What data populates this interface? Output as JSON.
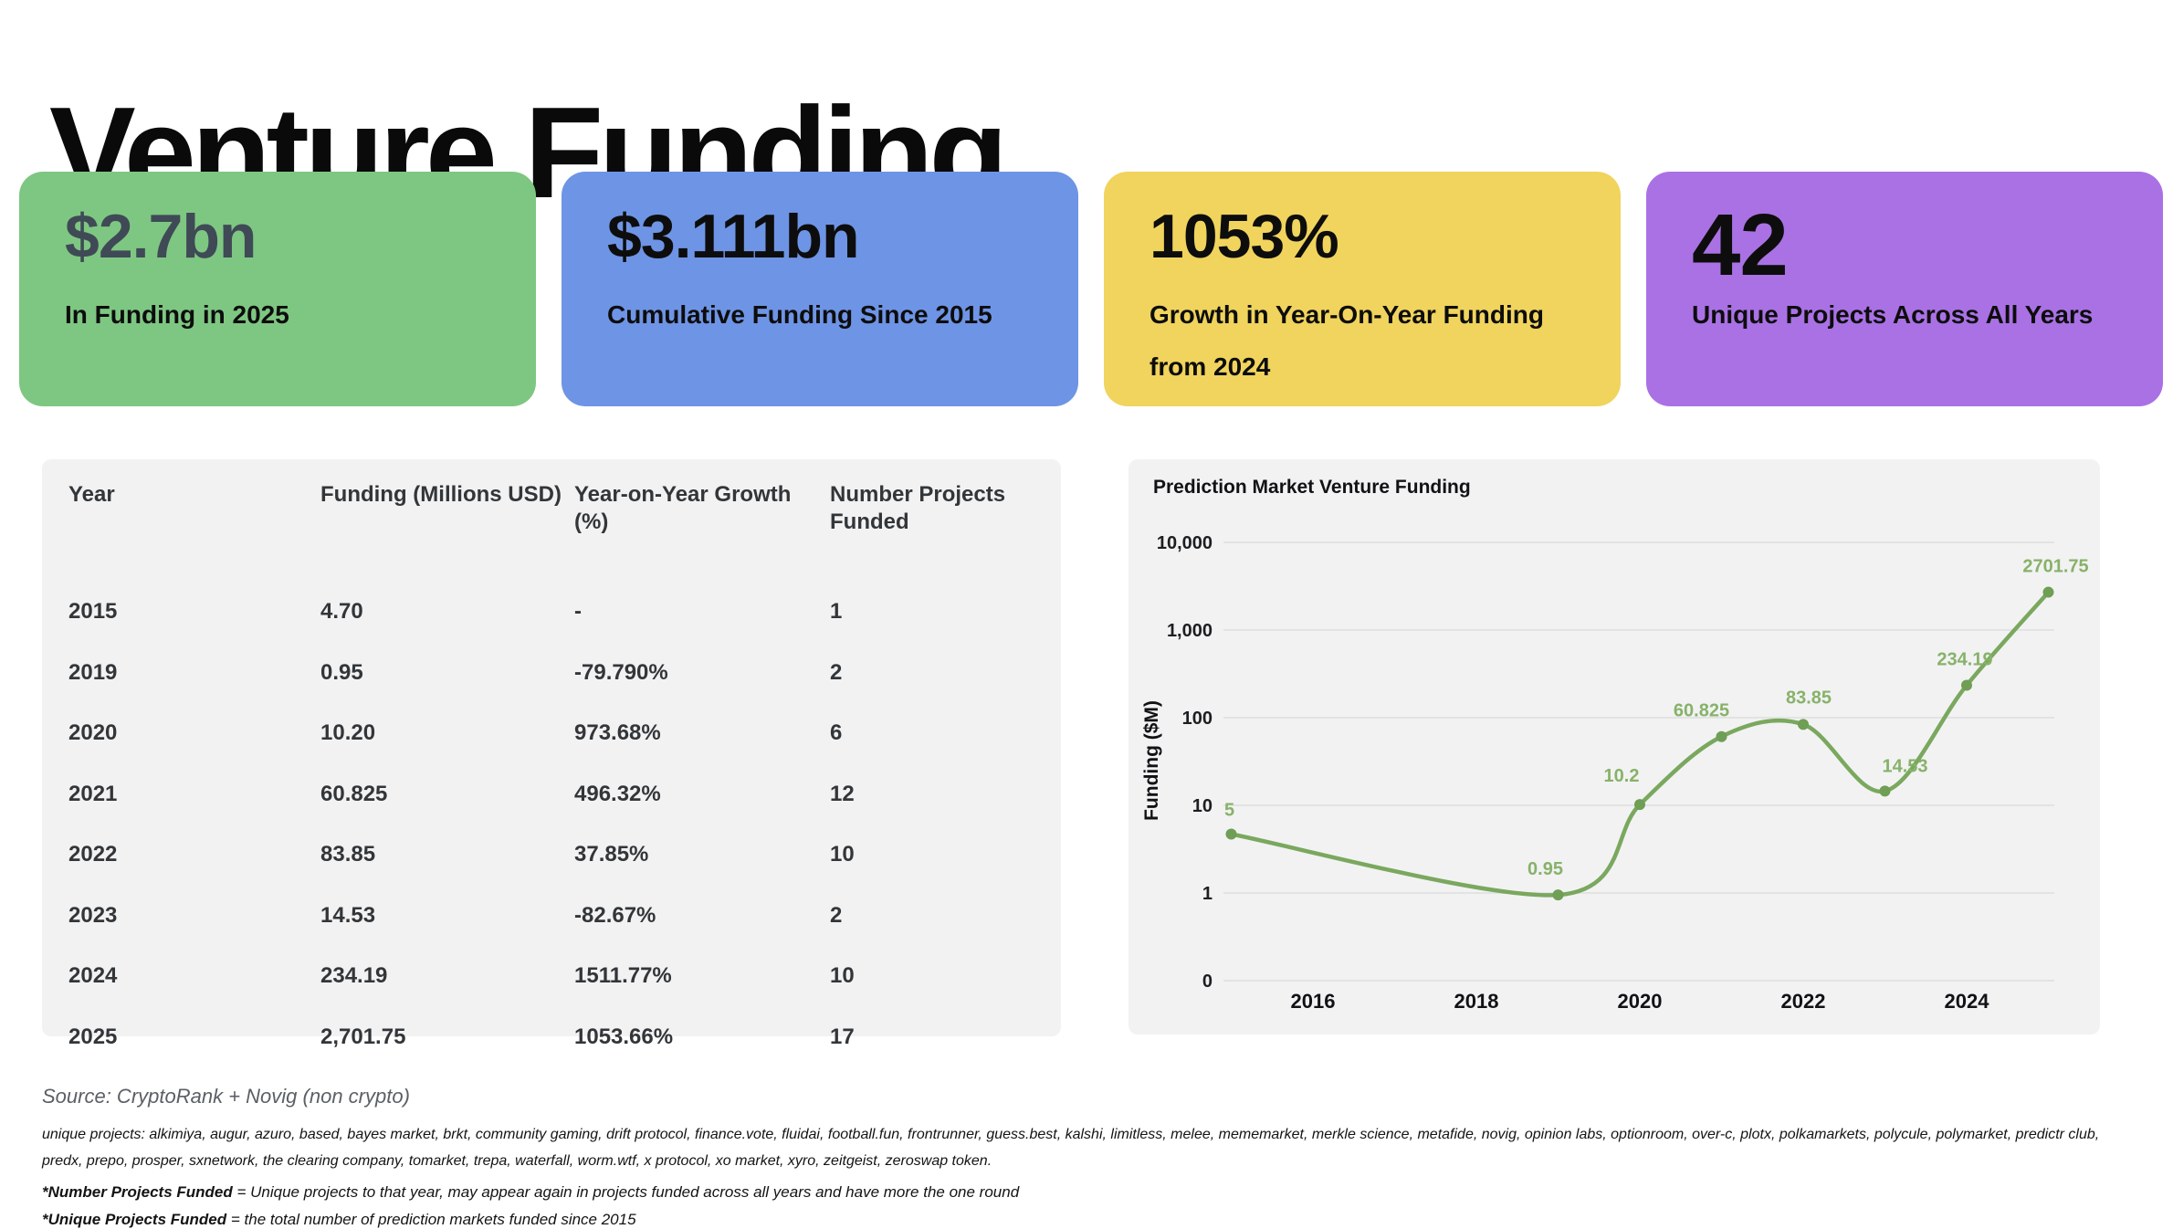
{
  "page": {
    "title": "Venture Funding"
  },
  "kpi_cards": [
    {
      "value": "$2.7bn",
      "label": "In Funding in 2025",
      "bg": "#7ec782",
      "value_color": "#3f4a56"
    },
    {
      "value": "$3.111bn",
      "label": "Cumulative Funding Since 2015",
      "bg": "#6e94e5",
      "value_color": "#0d0d0d"
    },
    {
      "value": "1053%",
      "label": "Growth in Year-On-Year Funding from 2024",
      "bg": "#f0d45d",
      "value_color": "#0d0d0d"
    },
    {
      "value": "42",
      "label": "Unique Projects Across All Years",
      "bg": "#aa71e5",
      "value_color": "#0d0d0d"
    }
  ],
  "table": {
    "columns": [
      "Year",
      "Funding (Millions USD)",
      "Year-on-Year Growth (%)",
      "Number Projects Funded"
    ],
    "rows": [
      [
        "2015",
        "4.70",
        "-",
        "1"
      ],
      [
        "2019",
        "0.95",
        "-79.790%",
        "2"
      ],
      [
        "2020",
        "10.20",
        "973.68%",
        "6"
      ],
      [
        "2021",
        "60.825",
        "496.32%",
        "12"
      ],
      [
        "2022",
        "83.85",
        "37.85%",
        "10"
      ],
      [
        "2023",
        "14.53",
        "-82.67%",
        "2"
      ],
      [
        "2024",
        "234.19",
        "1511.77%",
        "10"
      ],
      [
        "2025",
        "2,701.75",
        "1053.66%",
        "17"
      ]
    ]
  },
  "chart_data": {
    "type": "line",
    "title": "Prediction Market Venture Funding",
    "xlabel": "",
    "ylabel": "Funding ($M)",
    "y_scale": "log",
    "grid": true,
    "x_range": [
      2015,
      2025
    ],
    "x": [
      2015,
      2019,
      2020,
      2021,
      2022,
      2023,
      2024,
      2025
    ],
    "values": [
      4.7,
      0.95,
      10.2,
      60.825,
      83.85,
      14.53,
      234.19,
      2701.75
    ],
    "point_labels": [
      "5",
      "0.95",
      "10.2",
      "60.825",
      "83.85",
      "14.53",
      "234.19",
      "2701.75"
    ],
    "x_ticks": [
      2016,
      2018,
      2020,
      2022,
      2024
    ],
    "y_ticks": [
      {
        "label": "10,000",
        "value": 10000
      },
      {
        "label": "1,000",
        "value": 1000
      },
      {
        "label": "100",
        "value": 100
      },
      {
        "label": "10",
        "value": 10
      },
      {
        "label": "1",
        "value": 1
      },
      {
        "label": "0",
        "value": 0
      }
    ],
    "line_color": "#7aa85e",
    "point_color": "#6f9e55",
    "label_color": "#87b269",
    "grid_color": "#e3e3e4"
  },
  "footer": {
    "source": "Source: CryptoRank +  Novig (non crypto)",
    "unique_projects": "unique projects: alkimiya, augur, azuro, based, bayes market, brkt, community gaming, drift protocol, finance.vote, fluidai, football.fun, frontrunner, guess.best, kalshi, limitless, melee, mememarket, merkle science, metafide, novig, opinion labs, optionroom, over-c, plotx, polkamarkets, polycule, polymarket, predictr club, predx, prepo, prosper, sxnetwork, the clearing company, tomarket, trepa, waterfall, worm.wtf, x protocol, xo market, xyro, zeitgeist, zeroswap token.",
    "footnote1_bold": "*Number Projects Funded",
    "footnote1_rest": " = Unique projects to that year, may appear again in projects funded across all years and have more the one round",
    "footnote2_bold": "*Unique Projects Funded",
    "footnote2_rest": " =  the total number of prediction markets funded since 2015"
  }
}
